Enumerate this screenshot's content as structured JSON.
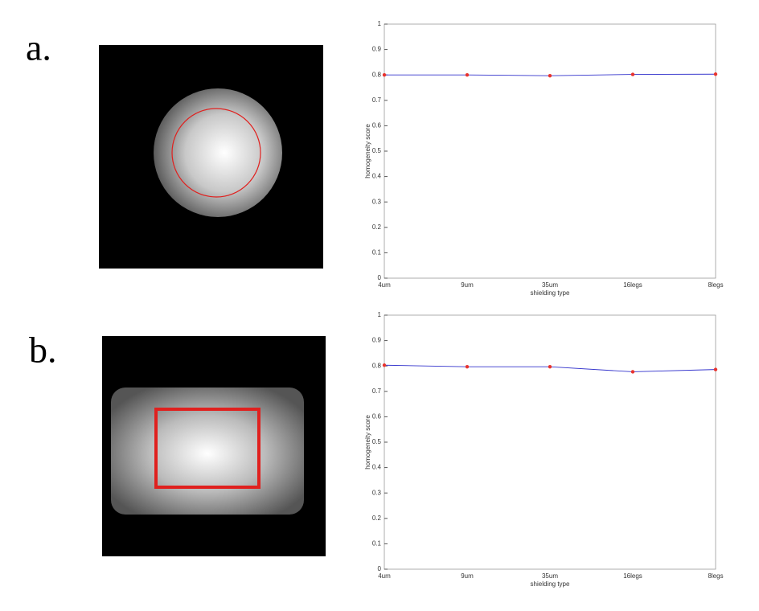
{
  "panels": [
    "a.",
    "b."
  ],
  "chart_data": [
    {
      "type": "line",
      "categories": [
        "4um",
        "9um",
        "35um",
        "16legs",
        "8legs"
      ],
      "xlabel": "shielding type",
      "ylabel": "homogeneity score",
      "ylim": [
        0,
        1
      ],
      "yticks": [
        0,
        0.1,
        0.2,
        0.3,
        0.4,
        0.5,
        0.6,
        0.7,
        0.8,
        0.9,
        1
      ],
      "series": [
        {
          "color": "#3333cc",
          "marker_color": "#e8332e",
          "values": [
            0.8,
            0.8,
            0.797,
            0.802,
            0.803
          ]
        }
      ]
    },
    {
      "type": "line",
      "categories": [
        "4um",
        "9um",
        "35um",
        "16legs",
        "8legs"
      ],
      "xlabel": "shielding type",
      "ylabel": "homogeneity score",
      "ylim": [
        0,
        1
      ],
      "yticks": [
        0,
        0.1,
        0.2,
        0.3,
        0.4,
        0.5,
        0.6,
        0.7,
        0.8,
        0.9,
        1
      ],
      "series": [
        {
          "color": "#3333cc",
          "marker_color": "#e8332e",
          "values": [
            0.803,
            0.797,
            0.797,
            0.777,
            0.786
          ]
        }
      ]
    }
  ]
}
